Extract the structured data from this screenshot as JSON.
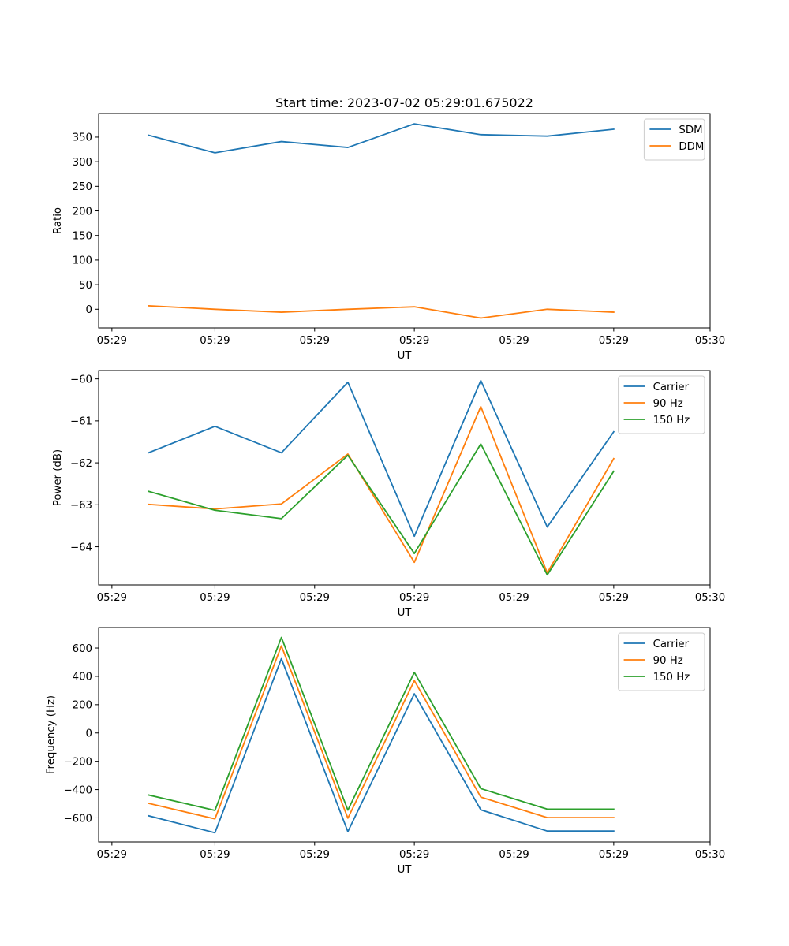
{
  "figure_title": "Start time: 2023-07-02 05:29:01.675022",
  "colors": {
    "blue": "#1f77b4",
    "orange": "#ff7f0e",
    "green": "#2ca02c"
  },
  "chart_data": [
    {
      "type": "line",
      "title": "Start time: 2023-07-02 05:29:01.675022",
      "xlabel": "UT",
      "ylabel": "Ratio",
      "x": [
        1,
        2,
        3,
        4,
        5,
        6,
        7,
        8
      ],
      "xlim": [
        0.25,
        9.45
      ],
      "ylim": [
        -38,
        398
      ],
      "xticks": [
        0.45,
        2.0,
        3.5,
        5.0,
        6.5,
        8.0,
        9.45
      ],
      "xtick_labels": [
        "05:29",
        "05:29",
        "05:29",
        "05:29",
        "05:29",
        "05:29",
        "05:30"
      ],
      "yticks": [
        0,
        50,
        100,
        150,
        200,
        250,
        300,
        350
      ],
      "ytick_labels": [
        "0",
        "50",
        "100",
        "150",
        "200",
        "250",
        "300",
        "350"
      ],
      "legend_position": "upper right",
      "series": [
        {
          "name": "SDM",
          "color": "#1f77b4",
          "values": [
            354,
            318,
            341,
            329,
            377,
            355,
            352,
            366
          ]
        },
        {
          "name": "DDM",
          "color": "#ff7f0e",
          "values": [
            7,
            0,
            -6,
            0,
            5,
            -18,
            0,
            -6
          ]
        }
      ]
    },
    {
      "type": "line",
      "title": "",
      "xlabel": "UT",
      "ylabel": "Power (dB)",
      "x": [
        1,
        2,
        3,
        4,
        5,
        6,
        7,
        8
      ],
      "xlim": [
        0.25,
        9.45
      ],
      "ylim": [
        -64.91,
        -59.8
      ],
      "xticks": [
        0.45,
        2.0,
        3.5,
        5.0,
        6.5,
        8.0,
        9.45
      ],
      "xtick_labels": [
        "05:29",
        "05:29",
        "05:29",
        "05:29",
        "05:29",
        "05:29",
        "05:30"
      ],
      "yticks": [
        -64,
        -63,
        -62,
        -61,
        -60
      ],
      "ytick_labels": [
        "−64",
        "−63",
        "−62",
        "−61",
        "−60"
      ],
      "legend_position": "upper right",
      "series": [
        {
          "name": "Carrier",
          "color": "#1f77b4",
          "values": [
            -61.76,
            -61.13,
            -61.76,
            -60.08,
            -63.75,
            -60.04,
            -63.53,
            -61.26
          ]
        },
        {
          "name": "90 Hz",
          "color": "#ff7f0e",
          "values": [
            -62.99,
            -63.1,
            -62.98,
            -61.79,
            -64.37,
            -60.66,
            -64.62,
            -61.9
          ]
        },
        {
          "name": "150 Hz",
          "color": "#2ca02c",
          "values": [
            -62.68,
            -63.13,
            -63.33,
            -61.82,
            -64.16,
            -61.55,
            -64.67,
            -62.2
          ]
        }
      ]
    },
    {
      "type": "line",
      "title": "",
      "xlabel": "UT",
      "ylabel": "Frequency (Hz)",
      "x": [
        1,
        2,
        3,
        4,
        5,
        6,
        7,
        8
      ],
      "xlim": [
        0.25,
        9.45
      ],
      "ylim": [
        -770,
        745
      ],
      "xticks": [
        0.45,
        2.0,
        3.5,
        5.0,
        6.5,
        8.0,
        9.45
      ],
      "xtick_labels": [
        "05:29",
        "05:29",
        "05:29",
        "05:29",
        "05:29",
        "05:29",
        "05:30"
      ],
      "yticks": [
        -600,
        -400,
        -200,
        0,
        200,
        400,
        600
      ],
      "ytick_labels": [
        "−600",
        "−400",
        "−200",
        "0",
        "200",
        "400",
        "600"
      ],
      "legend_position": "upper right",
      "series": [
        {
          "name": "Carrier",
          "color": "#1f77b4",
          "values": [
            -585,
            -705,
            525,
            -697,
            277,
            -543,
            -693,
            -693
          ]
        },
        {
          "name": "90 Hz",
          "color": "#ff7f0e",
          "values": [
            -497,
            -607,
            615,
            -602,
            370,
            -453,
            -598,
            -598
          ]
        },
        {
          "name": "150 Hz",
          "color": "#2ca02c",
          "values": [
            -438,
            -547,
            675,
            -545,
            428,
            -393,
            -538,
            -538
          ]
        }
      ]
    }
  ]
}
